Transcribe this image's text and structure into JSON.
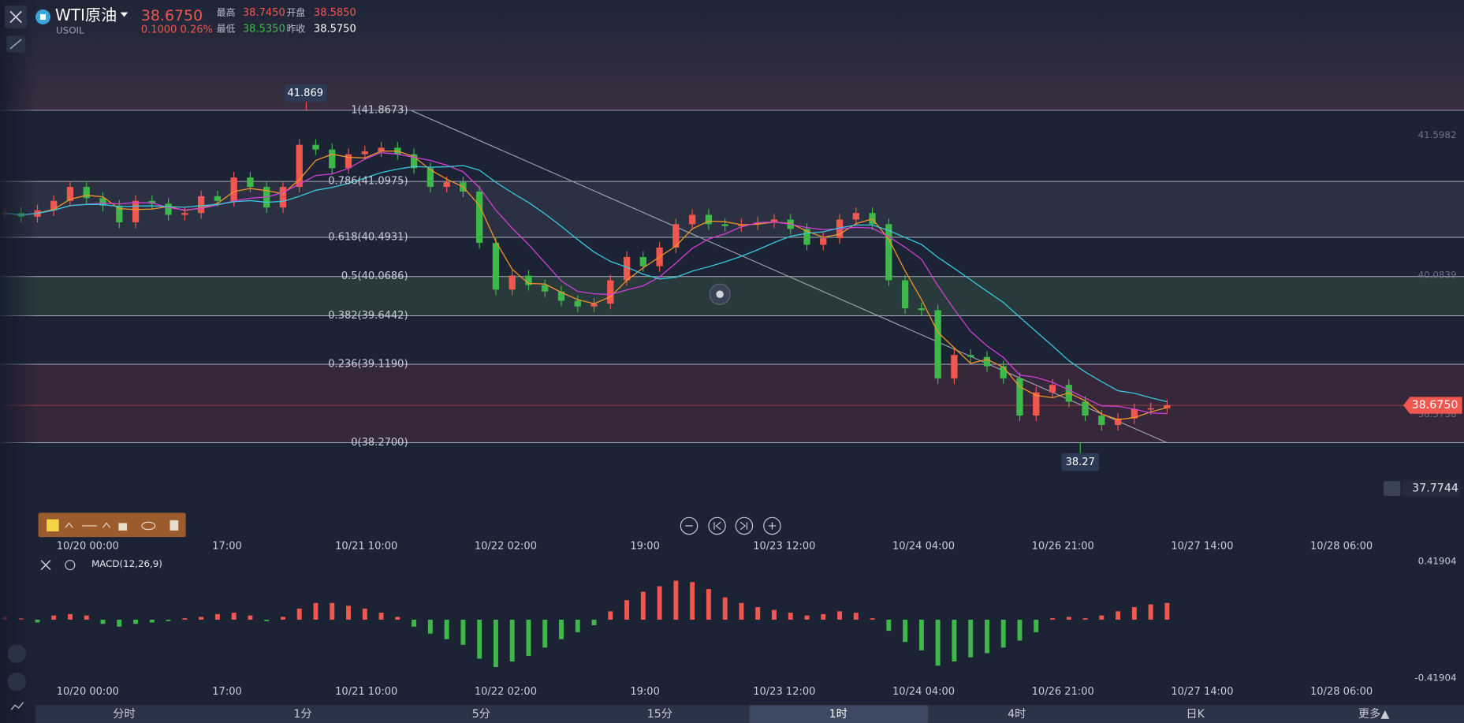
{
  "header": {
    "symbol": "WTI原油",
    "code": "USOIL",
    "price": "38.6750",
    "change": "0.1000",
    "change_pct": "0.26%",
    "stats": [
      {
        "label": "最高",
        "value": "38.7450"
      },
      {
        "label": "开盘",
        "value": "38.5850"
      },
      {
        "label": "最低",
        "value": "38.5350"
      },
      {
        "label": "昨收",
        "value": "38.5750"
      }
    ]
  },
  "chart_data": {
    "type": "candlestick",
    "values": [
      40.756,
      40.715,
      40.786,
      40.887,
      41.039,
      40.918,
      40.836,
      40.655,
      40.887,
      40.857,
      40.736,
      40.756,
      40.938,
      40.887,
      41.14,
      41.039,
      40.816,
      41.039,
      41.494,
      41.443,
      41.241,
      41.392,
      41.423,
      41.463,
      41.392,
      41.241,
      41.039,
      41.089,
      40.988,
      40.432,
      39.927,
      40.079,
      39.977,
      39.907,
      39.806,
      39.745,
      39.775,
      40.028,
      40.28,
      40.18,
      40.382,
      40.635,
      40.736,
      40.635,
      40.614,
      40.635,
      40.655,
      40.685,
      40.584,
      40.412,
      40.483,
      40.685,
      40.756,
      40.635,
      40.028,
      39.725,
      39.705,
      38.967,
      39.22,
      39.199,
      39.098,
      38.967,
      38.564,
      38.815,
      38.896,
      38.714,
      38.564,
      38.462,
      38.533,
      38.634,
      38.644,
      38.675
    ],
    "ylim": [
      37.5525,
      43.0597
    ],
    "fib_levels": [
      {
        "label": "1(41.8673)",
        "value": 41.8673
      },
      {
        "label": "0.786(41.0975)",
        "value": 41.0975
      },
      {
        "label": "0.618(40.4931)",
        "value": 40.4931
      },
      {
        "label": "0.5(40.0686)",
        "value": 40.0686
      },
      {
        "label": "0.382(39.6442)",
        "value": 39.6442
      },
      {
        "label": "0.236(39.1190)",
        "value": 39.119
      },
      {
        "label": "0(38.2700)",
        "value": 38.27
      }
    ],
    "yticks": [
      41.5982,
      40.0839,
      38.5758
    ],
    "price_tag": {
      "value": 38.675,
      "label": "38.6750"
    },
    "alert_price": 37.7744,
    "high_marker": 41.869,
    "low_marker": 38.27,
    "x_labels": [
      "10/20 00:00",
      "17:00",
      "10/21 10:00",
      "10/22 02:00",
      "19:00",
      "10/23 12:00",
      "10/24 04:00",
      "10/26 21:00",
      "10/27 14:00",
      "10/28 06:00"
    ],
    "up_color": "#f0574f",
    "down_color": "#3fb84a"
  },
  "macd": {
    "label": "MACD(12,26,9)",
    "values": [
      0.02,
      0.01,
      -0.02,
      0.03,
      0.04,
      0.03,
      -0.03,
      -0.05,
      -0.03,
      -0.02,
      -0.01,
      0.01,
      0.02,
      0.04,
      0.05,
      0.03,
      -0.01,
      0.02,
      0.08,
      0.12,
      0.12,
      0.1,
      0.08,
      0.05,
      0.02,
      -0.05,
      -0.1,
      -0.14,
      -0.18,
      -0.28,
      -0.34,
      -0.3,
      -0.26,
      -0.2,
      -0.14,
      -0.09,
      -0.04,
      0.06,
      0.14,
      0.2,
      0.24,
      0.28,
      0.27,
      0.22,
      0.16,
      0.12,
      0.09,
      0.07,
      0.05,
      0.03,
      0.04,
      0.06,
      0.05,
      0.01,
      -0.08,
      -0.16,
      -0.22,
      -0.33,
      -0.3,
      -0.27,
      -0.24,
      -0.2,
      -0.15,
      -0.09,
      0.01,
      0.02,
      0.01,
      0.03,
      0.06,
      0.09,
      0.11,
      0.12
    ],
    "yticks": [
      0.41904,
      -0.41904
    ]
  },
  "tabs": [
    "分时",
    "1分",
    "5分",
    "15分",
    "1时",
    "4时",
    "日K",
    "更多▲"
  ],
  "active_tab": 4
}
